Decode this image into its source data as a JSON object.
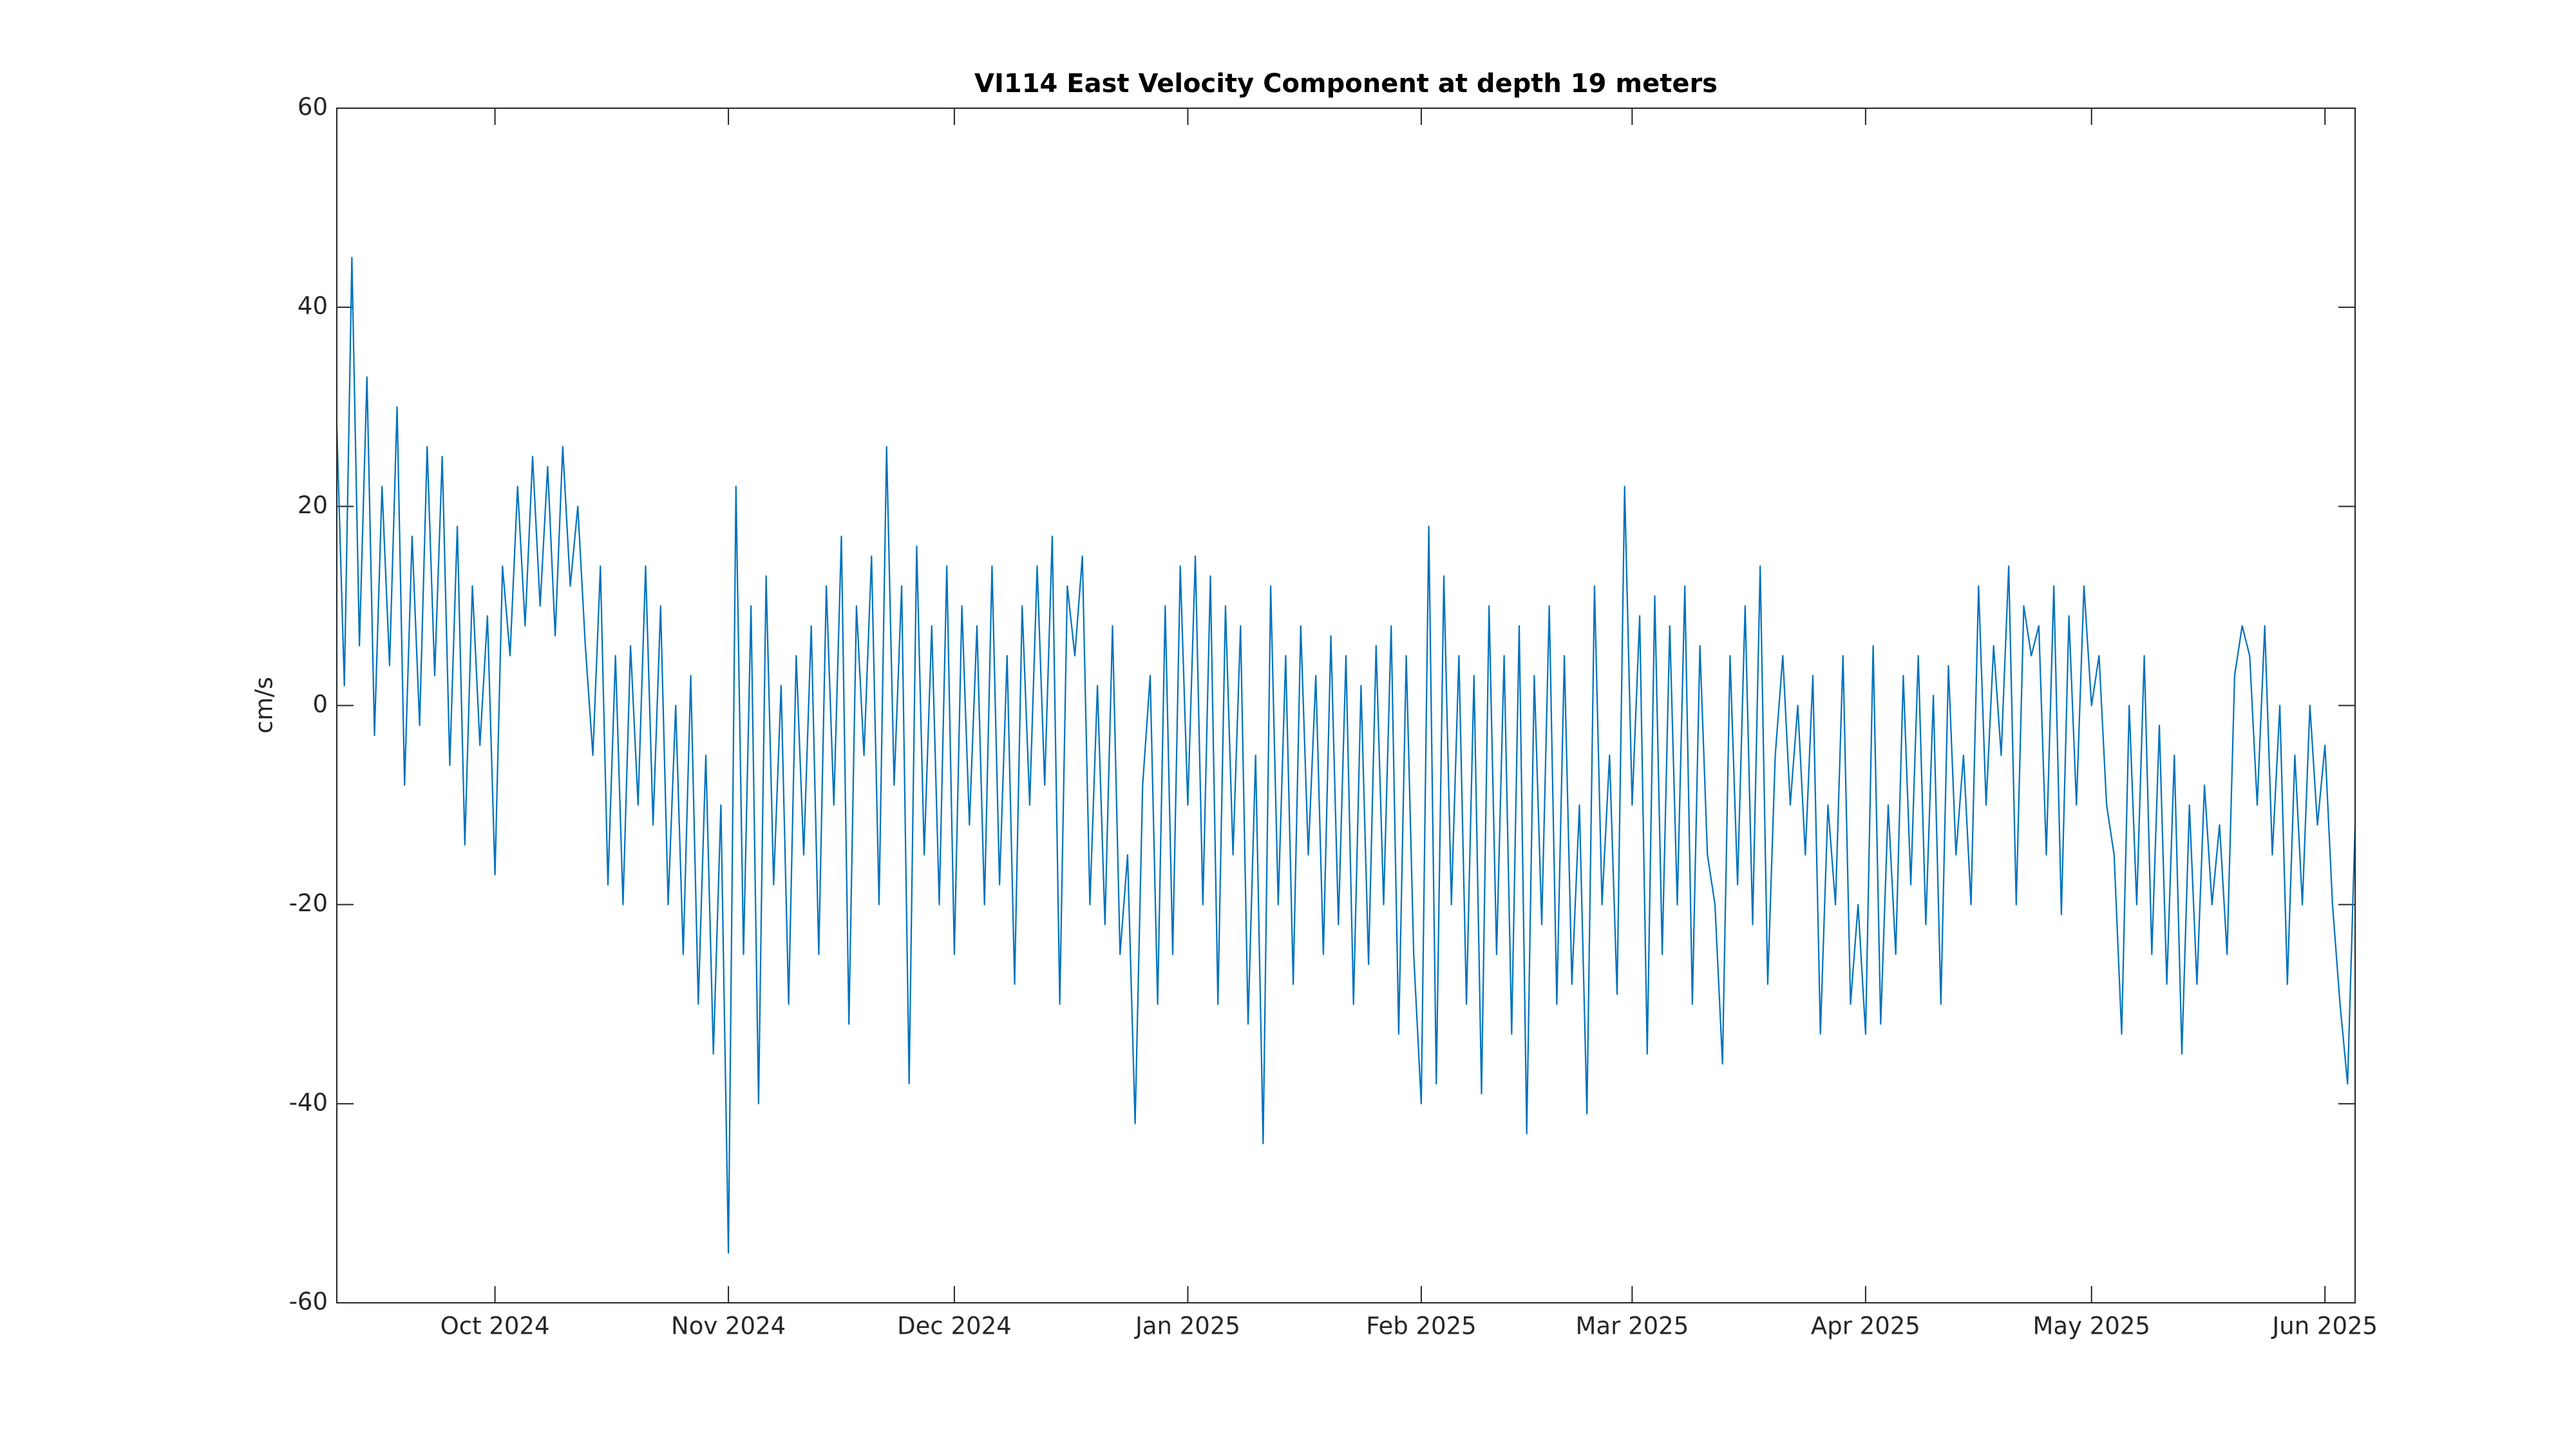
{
  "chart_data": {
    "type": "line",
    "title": "VI114 East Velocity Component at depth 19 meters",
    "ylabel": "cm/s",
    "color": "#0072bd",
    "xlim": [
      -21,
      247
    ],
    "xticks": [
      {
        "value": 0,
        "label": "Oct 2024"
      },
      {
        "value": 31,
        "label": "Nov 2024"
      },
      {
        "value": 61,
        "label": "Dec 2024"
      },
      {
        "value": 92,
        "label": "Jan 2025"
      },
      {
        "value": 123,
        "label": "Feb 2025"
      },
      {
        "value": 151,
        "label": "Mar 2025"
      },
      {
        "value": 182,
        "label": "Apr 2025"
      },
      {
        "value": 212,
        "label": "May 2025"
      },
      {
        "value": 243,
        "label": "Jun 2025"
      }
    ],
    "ylim": [
      -60,
      60
    ],
    "yticks": [
      -60,
      -40,
      -20,
      0,
      20,
      40,
      60
    ],
    "x": [
      -21,
      -20,
      -19,
      -18,
      -17,
      -16,
      -15,
      -14,
      -13,
      -12,
      -11,
      -10,
      -9,
      -8,
      -7,
      -6,
      -5,
      -4,
      -3,
      -2,
      -1,
      0,
      1,
      2,
      3,
      4,
      5,
      6,
      7,
      8,
      9,
      10,
      11,
      12,
      13,
      14,
      15,
      16,
      17,
      18,
      19,
      20,
      21,
      22,
      23,
      24,
      25,
      26,
      27,
      28,
      29,
      30,
      31,
      32,
      33,
      34,
      35,
      36,
      37,
      38,
      39,
      40,
      41,
      42,
      43,
      44,
      45,
      46,
      47,
      48,
      49,
      50,
      51,
      52,
      53,
      54,
      55,
      56,
      57,
      58,
      59,
      60,
      61,
      62,
      63,
      64,
      65,
      66,
      67,
      68,
      69,
      70,
      71,
      72,
      73,
      74,
      75,
      76,
      77,
      78,
      79,
      80,
      81,
      82,
      83,
      84,
      85,
      86,
      87,
      88,
      89,
      90,
      91,
      92,
      93,
      94,
      95,
      96,
      97,
      98,
      99,
      100,
      101,
      102,
      103,
      104,
      105,
      106,
      107,
      108,
      109,
      110,
      111,
      112,
      113,
      114,
      115,
      116,
      117,
      118,
      119,
      120,
      121,
      122,
      123,
      124,
      125,
      126,
      127,
      128,
      129,
      130,
      131,
      132,
      133,
      134,
      135,
      136,
      137,
      138,
      139,
      140,
      141,
      142,
      143,
      144,
      145,
      146,
      147,
      148,
      149,
      150,
      151,
      152,
      153,
      154,
      155,
      156,
      157,
      158,
      159,
      160,
      161,
      162,
      163,
      164,
      165,
      166,
      167,
      168,
      169,
      170,
      171,
      172,
      173,
      174,
      175,
      176,
      177,
      178,
      179,
      180,
      181,
      182,
      183,
      184,
      185,
      186,
      187,
      188,
      189,
      190,
      191,
      192,
      193,
      194,
      195,
      196,
      197,
      198,
      199,
      200,
      201,
      202,
      203,
      204,
      205,
      206,
      207,
      208,
      209,
      210,
      211,
      212,
      213,
      214,
      215,
      216,
      217,
      218,
      219,
      220,
      221,
      222,
      223,
      224,
      225,
      226,
      227,
      228,
      229,
      230,
      231,
      232,
      233,
      234,
      235,
      236,
      237,
      238,
      239,
      240,
      241,
      242,
      243,
      244,
      245,
      246,
      247
    ],
    "values": [
      28,
      2,
      45,
      6,
      33,
      -3,
      22,
      4,
      30,
      -8,
      17,
      -2,
      26,
      3,
      25,
      -6,
      18,
      -14,
      12,
      -4,
      9,
      -17,
      14,
      5,
      22,
      8,
      25,
      10,
      24,
      7,
      26,
      12,
      20,
      6,
      -5,
      14,
      -18,
      5,
      -20,
      6,
      -10,
      14,
      -12,
      10,
      -20,
      0,
      -25,
      3,
      -30,
      -5,
      -35,
      -10,
      -55,
      22,
      -25,
      10,
      -40,
      13,
      -18,
      2,
      -30,
      5,
      -15,
      8,
      -25,
      12,
      -10,
      17,
      -32,
      10,
      -5,
      15,
      -20,
      26,
      -8,
      12,
      -38,
      16,
      -15,
      8,
      -20,
      14,
      -25,
      10,
      -12,
      8,
      -20,
      14,
      -18,
      5,
      -28,
      10,
      -10,
      14,
      -8,
      17,
      -30,
      12,
      5,
      15,
      -20,
      2,
      -22,
      8,
      -25,
      -15,
      -42,
      -8,
      3,
      -30,
      10,
      -25,
      14,
      -10,
      15,
      -20,
      13,
      -30,
      10,
      -15,
      8,
      -32,
      -5,
      -44,
      12,
      -20,
      5,
      -28,
      8,
      -15,
      3,
      -25,
      7,
      -22,
      5,
      -30,
      2,
      -26,
      6,
      -20,
      8,
      -33,
      5,
      -25,
      -40,
      18,
      -38,
      13,
      -20,
      5,
      -30,
      3,
      -39,
      10,
      -25,
      5,
      -33,
      8,
      -43,
      3,
      -22,
      10,
      -30,
      5,
      -28,
      -10,
      -41,
      12,
      -20,
      -5,
      -29,
      22,
      -10,
      9,
      -35,
      11,
      -25,
      8,
      -20,
      12,
      -30,
      6,
      -15,
      -20,
      -36,
      5,
      -18,
      10,
      -22,
      14,
      -28,
      -5,
      5,
      -10,
      0,
      -15,
      3,
      -33,
      -10,
      -20,
      5,
      -30,
      -20,
      -33,
      6,
      -32,
      -10,
      -25,
      3,
      -18,
      5,
      -22,
      1,
      -30,
      4,
      -15,
      -5,
      -20,
      12,
      -10,
      6,
      -5,
      14,
      -20,
      10,
      5,
      8,
      -15,
      12,
      -21,
      9,
      -10,
      12,
      0,
      5,
      -10,
      -15,
      -33,
      0,
      -20,
      5,
      -25,
      -2,
      -28,
      -5,
      -35,
      -10,
      -28,
      -8,
      -20,
      -12,
      -25,
      3,
      8,
      5,
      -10,
      8,
      -15,
      0,
      -28,
      -5,
      -20,
      0,
      -12,
      -4,
      -20,
      -30,
      -38,
      -12
    ]
  }
}
